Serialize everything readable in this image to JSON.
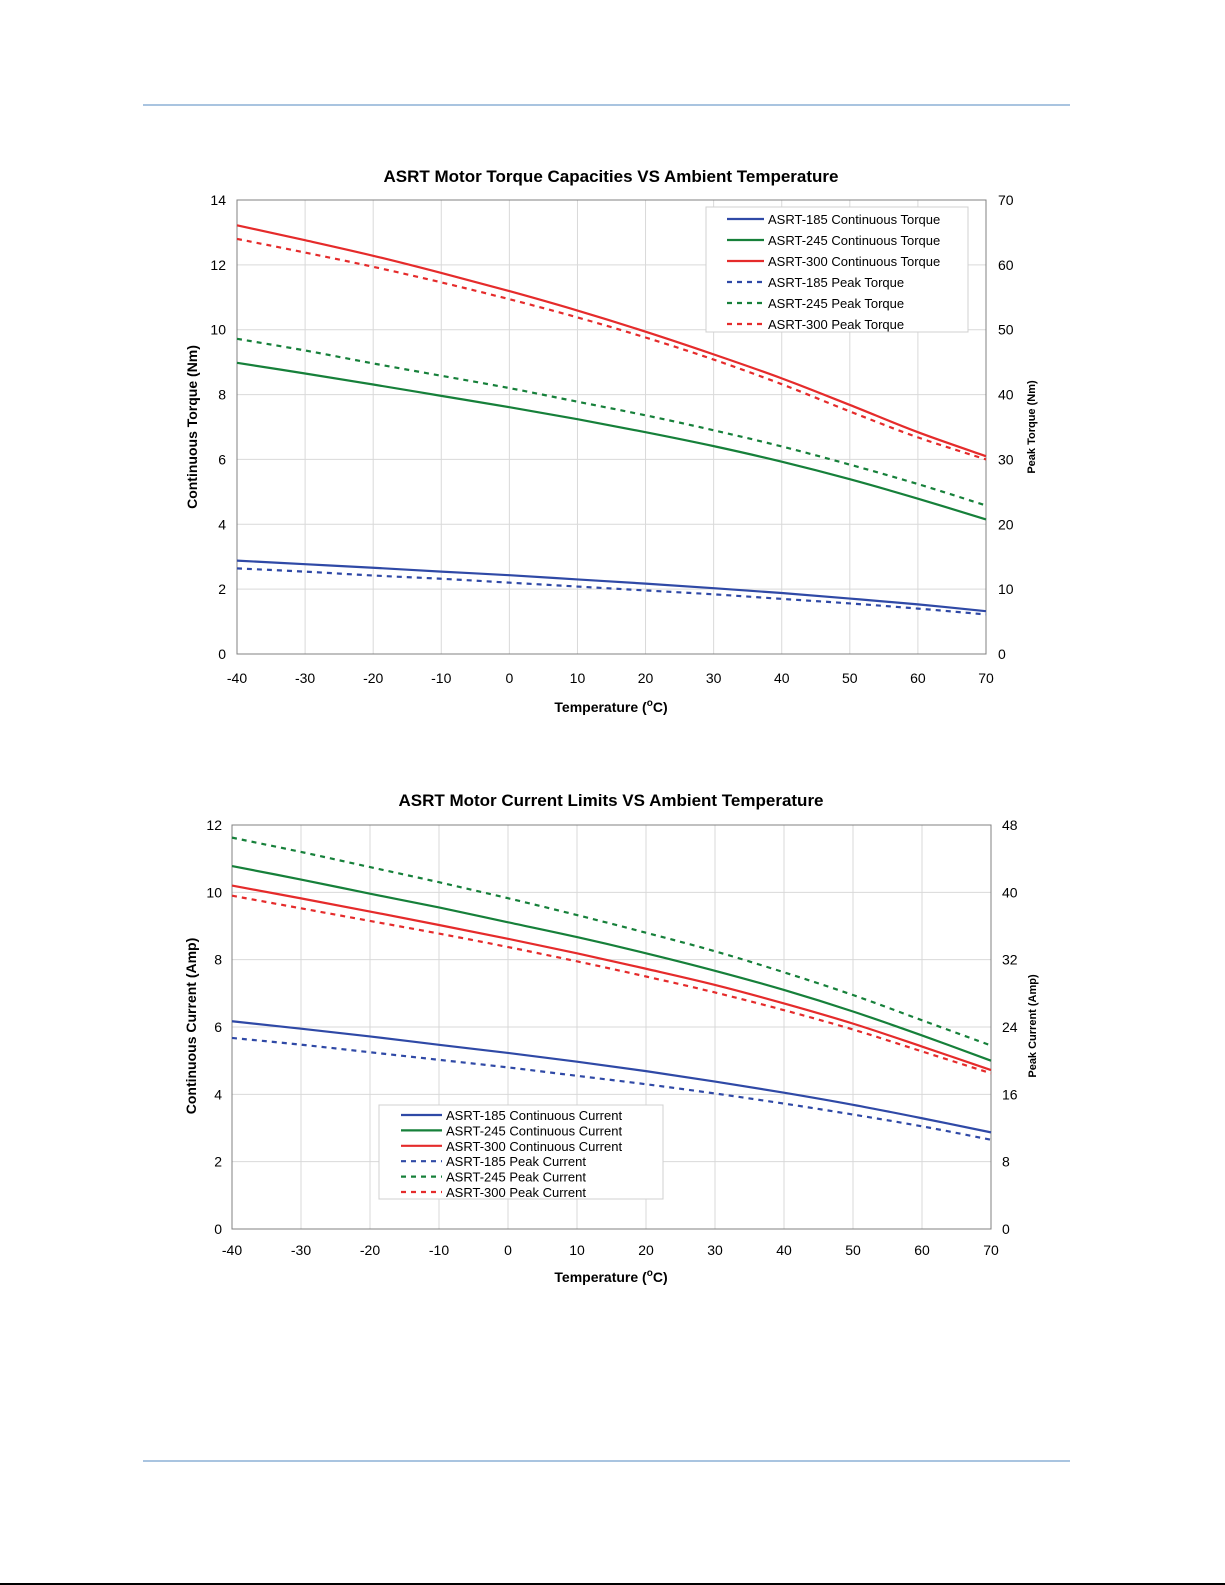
{
  "colors": {
    "asrt185": "#2f49a6",
    "asrt245": "#16803a",
    "asrt300": "#e52b2b",
    "rule": "#a9c4e0",
    "grid": "#d9d9d9"
  },
  "chart_data": [
    {
      "type": "line",
      "title": "ASRT Motor Torque Capacities VS Ambient Temperature",
      "xlabel": "Temperature (",
      "xlabel_unit": "o",
      "xlabel_tail": "C)",
      "ylabel": "Continuous Torque (Nm)",
      "y2label": "Peak Torque (Nm)",
      "xlim": [
        -40,
        70
      ],
      "ylim": [
        0,
        14
      ],
      "y2lim": [
        0,
        70
      ],
      "xticks": [
        "-40",
        "-30",
        "-20",
        "-10",
        "0",
        "10",
        "20",
        "30",
        "40",
        "50",
        "60",
        "70"
      ],
      "yticks": [
        "0",
        "2",
        "4",
        "6",
        "8",
        "10",
        "12",
        "14"
      ],
      "y2ticks": [
        "0",
        "10",
        "20",
        "30",
        "40",
        "50",
        "60",
        "70"
      ],
      "grid": true,
      "legend_position": "top-right",
      "x": [
        -40,
        -30,
        -20,
        -10,
        0,
        10,
        20,
        30,
        40,
        50,
        60,
        70
      ],
      "series": [
        {
          "name": "ASRT-185 Continuous Torque",
          "axis": "left",
          "style": "solid",
          "color_key": "asrt185",
          "values": [
            2.88,
            2.77,
            2.66,
            2.54,
            2.43,
            2.3,
            2.17,
            2.03,
            1.88,
            1.71,
            1.53,
            1.32
          ]
        },
        {
          "name": "ASRT-245 Continuous Torque",
          "axis": "left",
          "style": "solid",
          "color_key": "asrt245",
          "values": [
            8.98,
            8.65,
            8.31,
            7.96,
            7.61,
            7.24,
            6.84,
            6.41,
            5.93,
            5.39,
            4.79,
            4.15
          ]
        },
        {
          "name": "ASRT-300 Continuous Torque",
          "axis": "left",
          "style": "solid",
          "color_key": "asrt300",
          "values": [
            13.22,
            12.76,
            12.28,
            11.75,
            11.19,
            10.59,
            9.94,
            9.24,
            8.5,
            7.68,
            6.84,
            6.1
          ]
        },
        {
          "name": "ASRT-185 Peak Torque",
          "axis": "right",
          "style": "dashed",
          "color_key": "asrt185",
          "values": [
            13.2,
            12.7,
            12.1,
            11.6,
            11.0,
            10.4,
            9.8,
            9.2,
            8.5,
            7.8,
            7.0,
            6.1
          ]
        },
        {
          "name": "ASRT-245 Peak Torque",
          "axis": "right",
          "style": "dashed",
          "color_key": "asrt245",
          "values": [
            48.6,
            46.8,
            44.8,
            42.9,
            41.0,
            38.9,
            36.8,
            34.5,
            32.0,
            29.2,
            26.2,
            22.9
          ]
        },
        {
          "name": "ASRT-300 Peak Torque",
          "axis": "right",
          "style": "dashed",
          "color_key": "asrt300",
          "values": [
            64.0,
            61.9,
            59.7,
            57.3,
            54.7,
            51.9,
            48.8,
            45.4,
            41.6,
            37.4,
            33.4,
            30.0
          ]
        }
      ]
    },
    {
      "type": "line",
      "title": "ASRT Motor Current Limits VS Ambient Temperature",
      "xlabel": "Temperature (",
      "xlabel_unit": "o",
      "xlabel_tail": "C)",
      "ylabel": "Continuous Current (Amp)",
      "y2label": "Peak Current (Amp)",
      "xlim": [
        -40,
        70
      ],
      "ylim": [
        0,
        12
      ],
      "y2lim": [
        0,
        48
      ],
      "xticks": [
        "-40",
        "-30",
        "-20",
        "-10",
        "0",
        "10",
        "20",
        "30",
        "40",
        "50",
        "60",
        "70"
      ],
      "yticks": [
        "0",
        "2",
        "4",
        "6",
        "8",
        "10",
        "12"
      ],
      "y2ticks": [
        "0",
        "8",
        "16",
        "24",
        "32",
        "40",
        "48"
      ],
      "grid": true,
      "legend_position": "bottom-left",
      "x": [
        -40,
        -30,
        -20,
        -10,
        0,
        10,
        20,
        30,
        40,
        50,
        60,
        70
      ],
      "series": [
        {
          "name": "ASRT-185 Continuous Current",
          "axis": "left",
          "style": "solid",
          "color_key": "asrt185",
          "values": [
            6.17,
            5.95,
            5.72,
            5.47,
            5.23,
            4.97,
            4.69,
            4.38,
            4.05,
            3.69,
            3.29,
            2.87
          ]
        },
        {
          "name": "ASRT-245 Continuous Current",
          "axis": "left",
          "style": "solid",
          "color_key": "asrt245",
          "values": [
            10.78,
            10.38,
            9.96,
            9.55,
            9.11,
            8.67,
            8.19,
            7.67,
            7.1,
            6.46,
            5.75,
            5.0
          ]
        },
        {
          "name": "ASRT-300 Continuous Current",
          "axis": "left",
          "style": "solid",
          "color_key": "asrt300",
          "values": [
            10.2,
            9.82,
            9.43,
            9.03,
            8.62,
            8.19,
            7.73,
            7.25,
            6.7,
            6.1,
            5.42,
            4.72
          ]
        },
        {
          "name": "ASRT-185 Peak Current",
          "axis": "right",
          "style": "dashed",
          "color_key": "asrt185",
          "values": [
            22.7,
            21.9,
            21.0,
            20.1,
            19.2,
            18.2,
            17.2,
            16.1,
            14.9,
            13.6,
            12.2,
            10.6
          ]
        },
        {
          "name": "ASRT-245 Peak Current",
          "axis": "right",
          "style": "dashed",
          "color_key": "asrt245",
          "values": [
            46.5,
            44.8,
            43.0,
            41.2,
            39.3,
            37.3,
            35.2,
            33.0,
            30.5,
            27.8,
            24.8,
            21.8
          ]
        },
        {
          "name": "ASRT-300 Peak Current",
          "axis": "right",
          "style": "dashed",
          "color_key": "asrt300",
          "values": [
            39.6,
            38.1,
            36.6,
            35.1,
            33.5,
            31.8,
            30.0,
            28.1,
            26.0,
            23.7,
            21.1,
            18.5
          ]
        }
      ]
    }
  ]
}
